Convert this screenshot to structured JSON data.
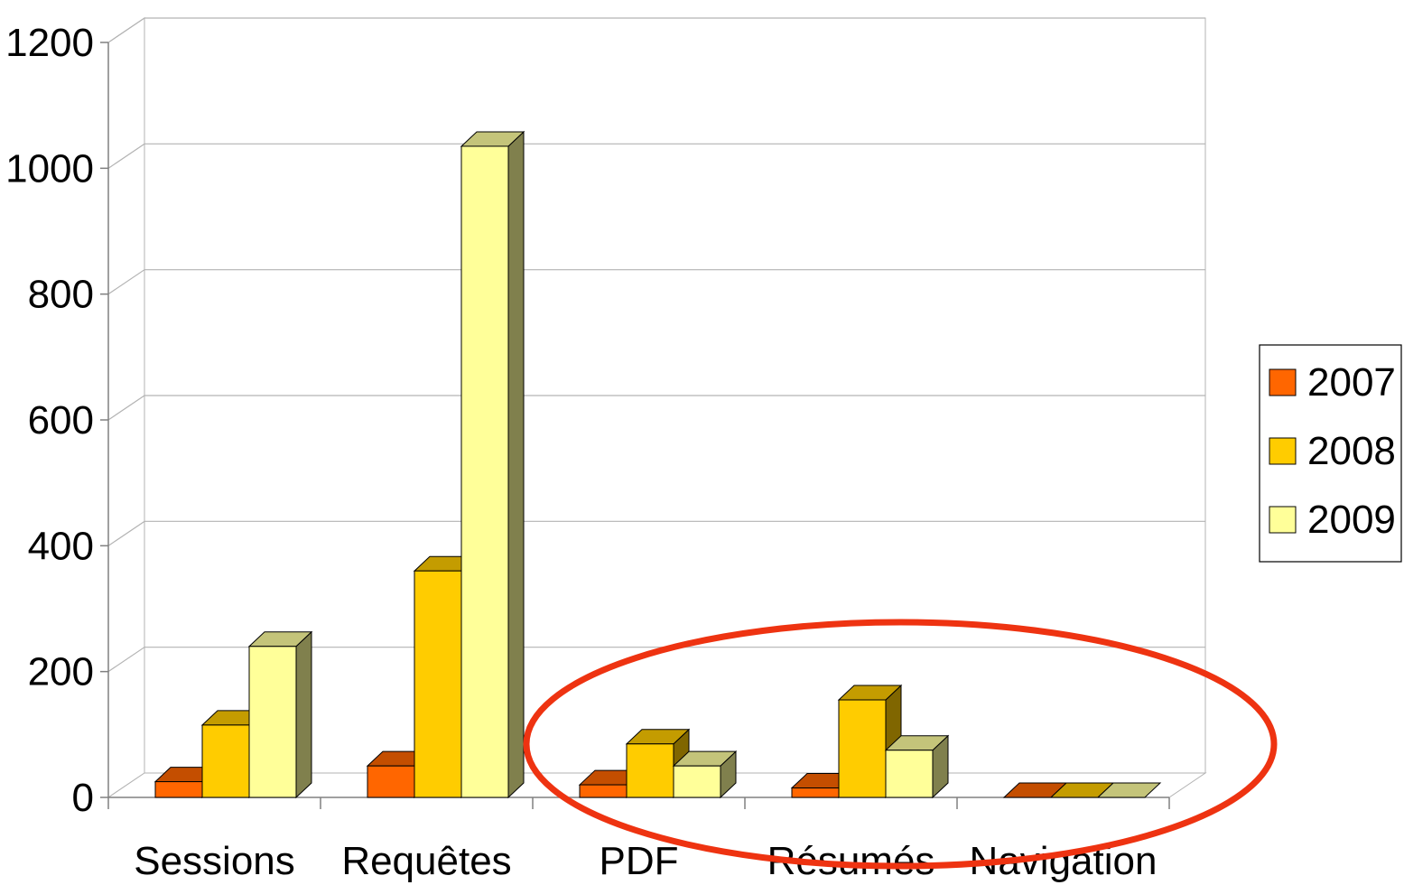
{
  "chart_data": {
    "type": "bar",
    "categories": [
      "Sessions",
      "Requêtes",
      "PDF",
      "Résumés",
      "Navigation"
    ],
    "series": [
      {
        "name": "2007",
        "values": [
          25,
          50,
          20,
          15,
          0
        ]
      },
      {
        "name": "2008",
        "values": [
          115,
          360,
          85,
          155,
          0
        ]
      },
      {
        "name": "2009",
        "values": [
          240,
          1035,
          50,
          75,
          0
        ]
      }
    ],
    "ylim": [
      0,
      1200
    ],
    "yticks": [
      "0",
      "200",
      "400",
      "600",
      "800",
      "1000",
      "1200"
    ],
    "grid": true,
    "legend_position": "right",
    "colors": {
      "2007": "#ff6600",
      "2008": "#ffcc00",
      "2009": "#ffff99",
      "2007_top": "#c44e00",
      "2008_top": "#c49c00",
      "2009_top": "#c4c47a",
      "2007_side": "#803300",
      "2008_side": "#806600",
      "2009_side": "#80804d",
      "highlight_ellipse": "#ee3311"
    }
  }
}
